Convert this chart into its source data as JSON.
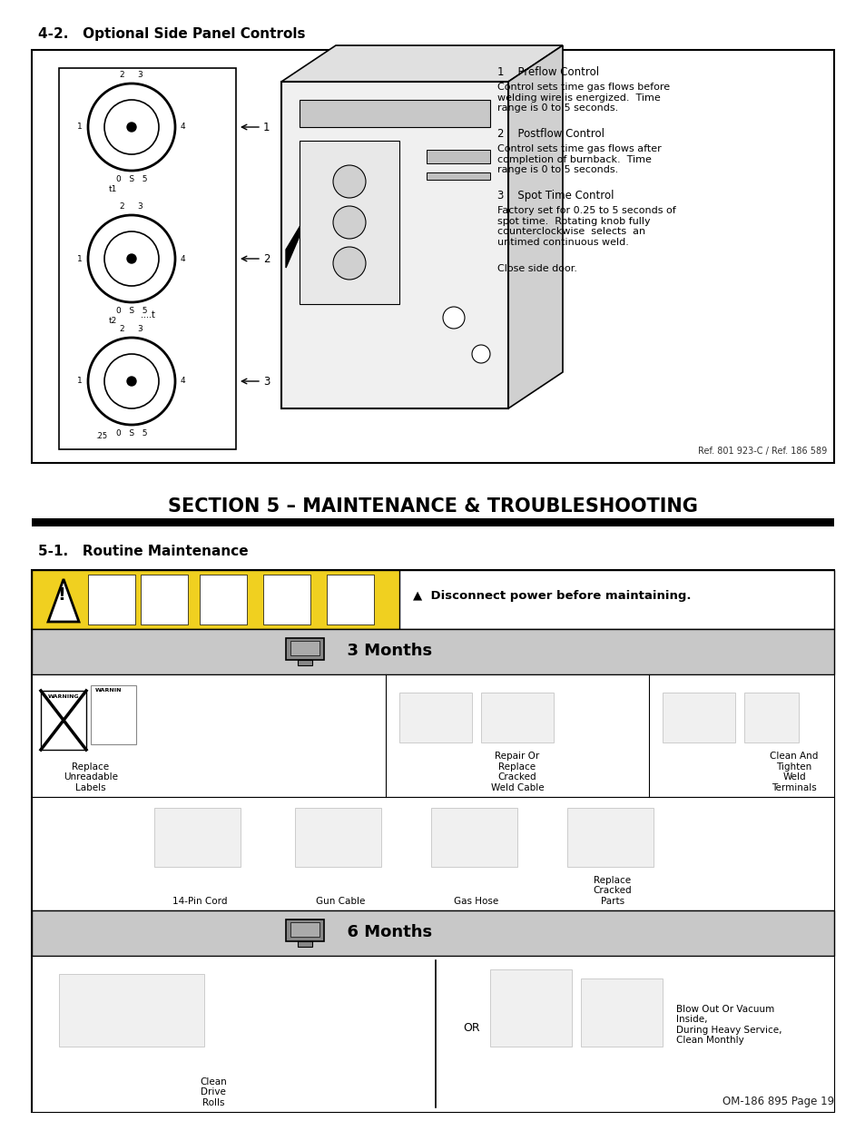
{
  "page_bg": "#ffffff",
  "heading_42": "4-2.   Optional Side Panel Controls",
  "section5_heading": "SECTION 5 – MAINTENANCE & TROUBLESHOOTING",
  "routine_heading": "5-1.   Routine Maintenance",
  "warning_text": "▲  Disconnect power before maintaining.",
  "months3_text": "  3 Months",
  "months6_text": "  6 Months",
  "right_texts": [
    {
      "text": "1    Preflow Control",
      "bold": false,
      "is_header": true
    },
    {
      "text": "Control sets time gas flows before\nwelding wire is energized.  Time\nrange is 0 to 5 seconds.",
      "bold": false,
      "is_header": false
    },
    {
      "text": "2    Postflow Control",
      "bold": false,
      "is_header": true
    },
    {
      "text": "Control sets time gas flows after\ncompletion of burnback.  Time\nrange is 0 to 5 seconds.",
      "bold": false,
      "is_header": false
    },
    {
      "text": "3    Spot Time Control",
      "bold": false,
      "is_header": true
    },
    {
      "text": "Factory set for 0.25 to 5 seconds of\nspot time.  Rotating knob fully\ncounterclockwise  selects  an\nuntimed continuous weld.",
      "bold": false,
      "is_header": false
    },
    {
      "text": "Close side door.",
      "bold": false,
      "is_header": false
    }
  ],
  "row1_labels": [
    "Replace\nUnreadable\nLabels",
    "Repair Or\nReplace\nCracked\nWeld Cable",
    "Clean And\nTighten\nWeld\nTerminals"
  ],
  "row2_labels": [
    "14-Pin Cord",
    "Gun Cable",
    "Gas Hose",
    "Replace\nCracked\nParts"
  ],
  "row3_left_label": "Clean\nDrive\nRolls",
  "row3_or": "OR",
  "row3_right_label": "Blow Out Or Vacuum\nInside,\nDuring Heavy Service,\nClean Monthly",
  "footer": "OM-186 895 Page 19",
  "ref_text": "Ref. 801 923-C / Ref. 186 589",
  "knob_labels": [
    "1",
    "2",
    "3"
  ],
  "knob_scales": [
    "0  S  5",
    "0  S  5",
    "0  S  5"
  ]
}
